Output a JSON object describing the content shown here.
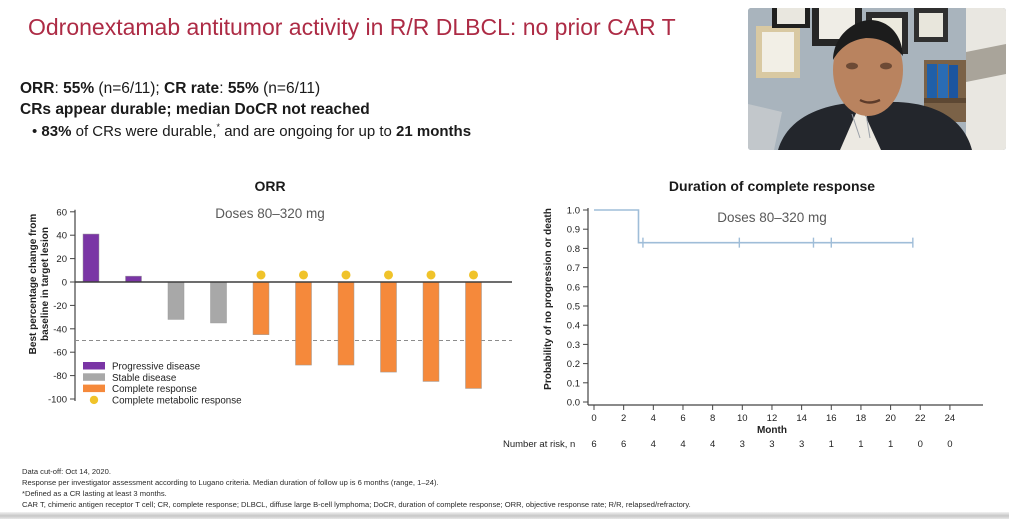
{
  "slide": {
    "title": "Odronextamab antitumor activity in R/R DLBCL: no prior CAR T",
    "stats": {
      "orr_label": "ORR",
      "colon1": ": ",
      "orr_value": "55%",
      "orr_n": " (n=6/11); ",
      "cr_label": "CR rate",
      "colon2": ": ",
      "cr_value": "55%",
      "cr_n": " (n=6/11)"
    },
    "line2": "CRs appear durable; median DoCR not reached",
    "bullet": {
      "marker": "• ",
      "pct": "83%",
      "mid": " of CRs were durable,",
      "sup": "*",
      "mid2": " and are ongoing for up to ",
      "months": "21 months"
    }
  },
  "colors": {
    "title": "#ad2b45",
    "progressive_disease": "#7a35a5",
    "stable_disease": "#a8a8a8",
    "complete_response": "#f5893b",
    "complete_metabolic_response": "#f0c32a",
    "km_line": "#9fbdd8"
  },
  "chart_data": [
    {
      "type": "bar",
      "title": "ORR",
      "subtitle": "Doses 80–320 mg",
      "ylabel_line1": "Best percentage change from",
      "ylabel_line2": "baseline in target lesion",
      "ylim": [
        -100,
        60
      ],
      "yticks": [
        60,
        40,
        20,
        0,
        -20,
        -40,
        -60,
        -80,
        -100
      ],
      "reference_line": -50,
      "marker_value": 6,
      "bars": [
        {
          "value": 41,
          "category": "Progressive disease",
          "marker": false
        },
        {
          "value": 5,
          "category": "Progressive disease",
          "marker": false
        },
        {
          "value": -32,
          "category": "Stable disease",
          "marker": false
        },
        {
          "value": -35,
          "category": "Stable disease",
          "marker": false
        },
        {
          "value": -45,
          "category": "Complete response",
          "marker": true
        },
        {
          "value": -71,
          "category": "Complete response",
          "marker": true
        },
        {
          "value": -71,
          "category": "Complete response",
          "marker": true
        },
        {
          "value": -77,
          "category": "Complete response",
          "marker": true
        },
        {
          "value": -85,
          "category": "Complete response",
          "marker": true
        },
        {
          "value": -91,
          "category": "Complete response",
          "marker": true
        }
      ],
      "legend": [
        {
          "label": "Progressive disease",
          "color": "#7a35a5",
          "shape": "rect"
        },
        {
          "label": "Stable disease",
          "color": "#a8a8a8",
          "shape": "rect"
        },
        {
          "label": "Complete response",
          "color": "#f5893b",
          "shape": "rect"
        },
        {
          "label": "Complete metabolic response",
          "color": "#f0c32a",
          "shape": "circle"
        }
      ],
      "legend_position": "lower left",
      "grid": false
    },
    {
      "type": "line",
      "title": "Duration of complete response",
      "subtitle": "Doses 80–320 mg",
      "ylabel": "Probability of no progression or death",
      "xlabel": "Month",
      "xlim": [
        0,
        24
      ],
      "ylim": [
        0.0,
        1.0
      ],
      "xticks": [
        0,
        2,
        4,
        6,
        8,
        10,
        12,
        14,
        16,
        18,
        20,
        22,
        24
      ],
      "yticks": [
        "1.0",
        "0.9",
        "0.8",
        "0.7",
        "0.6",
        "0.5",
        "0.4",
        "0.3",
        "0.2",
        "0.1",
        "0.0"
      ],
      "line_color": "#9fbdd8",
      "steps": [
        {
          "x": 0,
          "y": 1.0
        },
        {
          "x": 3,
          "y": 1.0
        },
        {
          "x": 3,
          "y": 0.83
        },
        {
          "x": 21.5,
          "y": 0.83
        }
      ],
      "censor_marks": [
        3.3,
        9.8,
        14.8,
        16,
        21.5
      ],
      "number_at_risk": {
        "label": "Number at risk, n",
        "values": [
          6,
          6,
          4,
          4,
          4,
          3,
          3,
          3,
          1,
          1,
          1,
          0,
          0
        ]
      },
      "grid": false
    }
  ],
  "footer": {
    "lines": [
      "Data cut-off: Oct 14, 2020.",
      "Response per investigator assessment according to Lugano criteria. Median duration of follow up is 6 months (range, 1–24).",
      "*Defined as a CR lasting at least 3 months.",
      "CAR T, chimeric antigen receptor T cell; CR, complete response; DLBCL, diffuse large B-cell lymphoma; DoCR, duration of complete response; ORR, objective response rate; R/R, relapsed/refractory."
    ]
  }
}
